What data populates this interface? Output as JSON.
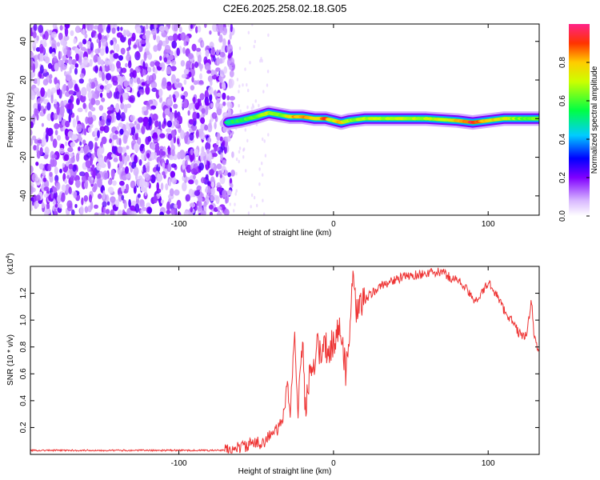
{
  "title": "C2E6.2025.258.02.18.G05",
  "chart_data": [
    {
      "type": "heatmap",
      "name": "spectrogram",
      "xlabel": "Height of straight line (km)",
      "ylabel": "Frequency (Hz)",
      "xlim": [
        -196,
        133
      ],
      "ylim": [
        -50,
        49
      ],
      "xticks": [
        -100,
        0,
        100
      ],
      "yticks": [
        -40,
        -20,
        0,
        20,
        40
      ],
      "colorbar": {
        "label": "Normalized spectral amplitude",
        "ticks": [
          0.0,
          0.2,
          0.4,
          0.6,
          0.8
        ],
        "range": [
          0,
          1
        ]
      },
      "noise_region": {
        "x_from": -196,
        "x_to": -68
      },
      "signal_track": {
        "x": [
          -68,
          -60,
          -50,
          -42,
          -35,
          -28,
          -20,
          -12,
          -5,
          0,
          5,
          10,
          20,
          40,
          60,
          80,
          90,
          100,
          110,
          120,
          133
        ],
        "y": [
          -2,
          -1,
          1,
          3,
          2,
          1,
          1,
          0,
          0,
          -1,
          -2,
          -1,
          0,
          0,
          0,
          -1,
          -2,
          -1,
          0,
          0,
          0
        ],
        "amplitude": [
          0.5,
          0.55,
          0.6,
          0.7,
          0.6,
          0.75,
          0.85,
          0.75,
          0.9,
          0.7,
          0.8,
          0.65,
          0.7,
          0.7,
          0.7,
          0.8,
          0.95,
          0.8,
          0.7,
          0.65,
          0.6
        ]
      }
    },
    {
      "type": "line",
      "name": "snr",
      "xlabel": "Height of straight line (km)",
      "ylabel": "SNR (10 * v/v)",
      "scale_label": "(x10",
      "scale_exponent": "4",
      "scale_suffix": ")",
      "xlim": [
        -196,
        133
      ],
      "ylim": [
        0,
        1.4
      ],
      "xticks": [
        -100,
        0,
        100
      ],
      "yticks": [
        0.2,
        0.4,
        0.6,
        0.8,
        1.0,
        1.2
      ],
      "ytick_labels": [
        "0.2",
        "0.4",
        "0.6",
        "0.8",
        "1.0",
        "1.2"
      ],
      "color": "#ee3333",
      "series": {
        "x": [
          -196,
          -180,
          -160,
          -140,
          -120,
          -100,
          -90,
          -80,
          -70,
          -65,
          -60,
          -55,
          -50,
          -45,
          -40,
          -35,
          -32,
          -30,
          -28,
          -26,
          -25,
          -23,
          -22,
          -20,
          -18,
          -15,
          -12,
          -10,
          -8,
          -5,
          -3,
          0,
          3,
          5,
          8,
          10,
          12,
          15,
          20,
          25,
          30,
          35,
          40,
          45,
          50,
          55,
          60,
          65,
          70,
          75,
          80,
          85,
          90,
          95,
          100,
          105,
          110,
          115,
          120,
          125,
          128,
          130,
          133
        ],
        "y": [
          0.03,
          0.03,
          0.03,
          0.03,
          0.03,
          0.03,
          0.03,
          0.03,
          0.03,
          0.04,
          0.05,
          0.07,
          0.08,
          0.1,
          0.15,
          0.2,
          0.3,
          0.55,
          0.3,
          0.75,
          0.9,
          0.25,
          0.6,
          0.8,
          0.3,
          0.7,
          0.65,
          0.85,
          0.7,
          0.8,
          0.75,
          0.85,
          0.9,
          0.95,
          0.6,
          0.8,
          1.3,
          1.05,
          1.15,
          1.2,
          1.25,
          1.28,
          1.3,
          1.32,
          1.33,
          1.34,
          1.35,
          1.35,
          1.36,
          1.32,
          1.3,
          1.25,
          1.15,
          1.18,
          1.28,
          1.2,
          1.08,
          1.0,
          0.9,
          0.88,
          1.15,
          0.85,
          0.78
        ]
      }
    }
  ]
}
